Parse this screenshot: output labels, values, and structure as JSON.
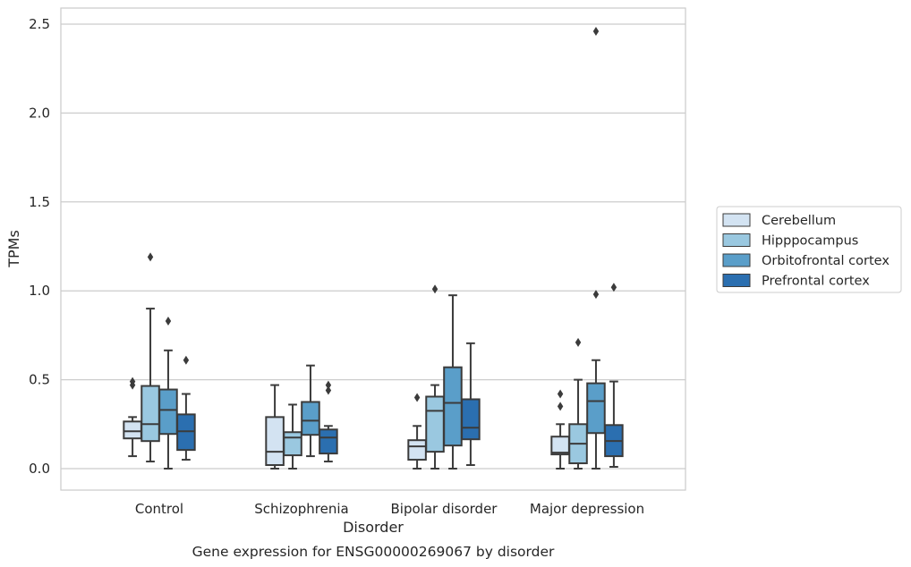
{
  "chart_data": {
    "type": "box",
    "title": "Gene expression for ENSG00000269067 by disorder",
    "xlabel": "Disorder",
    "ylabel": "TPMs",
    "ylim": [
      -0.12,
      2.6
    ],
    "yticks": [
      "0.0",
      "0.5",
      "1.0",
      "1.5",
      "2.0",
      "2.5"
    ],
    "grid": true,
    "legend_position": "right",
    "categories": [
      "Control",
      "Schizophrenia",
      "Bipolar disorder",
      "Major depression"
    ],
    "series": [
      {
        "name": "Cerebellum",
        "color": "#d3e3f2",
        "boxes": [
          {
            "whislo": 0.07,
            "q1": 0.17,
            "med": 0.21,
            "q3": 0.265,
            "whishi": 0.29,
            "fliers": [
              0.47,
              0.49
            ]
          },
          {
            "whislo": 0.0,
            "q1": 0.02,
            "med": 0.095,
            "q3": 0.29,
            "whishi": 0.47,
            "fliers": []
          },
          {
            "whislo": 0.0,
            "q1": 0.05,
            "med": 0.125,
            "q3": 0.16,
            "whishi": 0.24,
            "fliers": [
              0.4
            ]
          },
          {
            "whislo": 0.0,
            "q1": 0.08,
            "med": 0.09,
            "q3": 0.18,
            "whishi": 0.25,
            "fliers": [
              0.35,
              0.42
            ]
          }
        ]
      },
      {
        "name": "Hipppocampus",
        "color": "#9ac8e0",
        "boxes": [
          {
            "whislo": 0.04,
            "q1": 0.155,
            "med": 0.25,
            "q3": 0.465,
            "whishi": 0.9,
            "fliers": [
              1.19
            ]
          },
          {
            "whislo": 0.0,
            "q1": 0.075,
            "med": 0.175,
            "q3": 0.205,
            "whishi": 0.36,
            "fliers": []
          },
          {
            "whislo": 0.0,
            "q1": 0.095,
            "med": 0.325,
            "q3": 0.405,
            "whishi": 0.47,
            "fliers": [
              1.01
            ]
          },
          {
            "whislo": 0.0,
            "q1": 0.03,
            "med": 0.14,
            "q3": 0.25,
            "whishi": 0.5,
            "fliers": [
              0.71
            ]
          }
        ]
      },
      {
        "name": "Orbitofrontal cortex",
        "color": "#5a9ec9",
        "boxes": [
          {
            "whislo": 0.0,
            "q1": 0.195,
            "med": 0.33,
            "q3": 0.445,
            "whishi": 0.665,
            "fliers": [
              0.83
            ]
          },
          {
            "whislo": 0.07,
            "q1": 0.19,
            "med": 0.27,
            "q3": 0.375,
            "whishi": 0.58,
            "fliers": []
          },
          {
            "whislo": 0.0,
            "q1": 0.13,
            "med": 0.37,
            "q3": 0.57,
            "whishi": 0.975,
            "fliers": []
          },
          {
            "whislo": 0.0,
            "q1": 0.2,
            "med": 0.38,
            "q3": 0.48,
            "whishi": 0.61,
            "fliers": [
              0.98,
              2.46
            ]
          }
        ]
      },
      {
        "name": "Prefrontal cortex",
        "color": "#2b6fb0",
        "boxes": [
          {
            "whislo": 0.05,
            "q1": 0.105,
            "med": 0.21,
            "q3": 0.305,
            "whishi": 0.42,
            "fliers": [
              0.61
            ]
          },
          {
            "whislo": 0.04,
            "q1": 0.085,
            "med": 0.175,
            "q3": 0.22,
            "whishi": 0.24,
            "fliers": [
              0.44,
              0.47
            ]
          },
          {
            "whislo": 0.02,
            "q1": 0.165,
            "med": 0.23,
            "q3": 0.39,
            "whishi": 0.705,
            "fliers": []
          },
          {
            "whislo": 0.01,
            "q1": 0.07,
            "med": 0.155,
            "q3": 0.245,
            "whishi": 0.49,
            "fliers": [
              1.02
            ]
          }
        ]
      }
    ]
  }
}
